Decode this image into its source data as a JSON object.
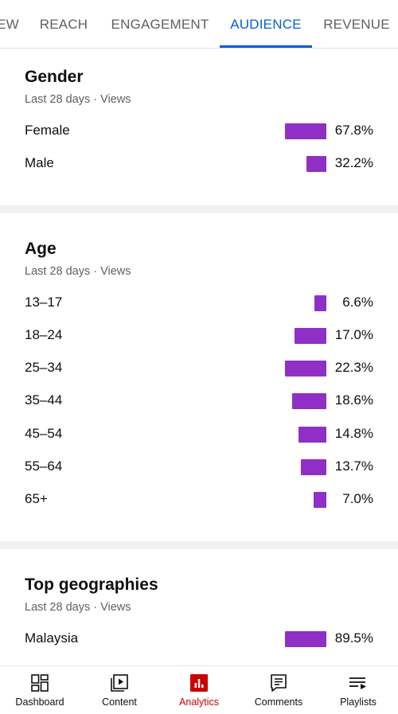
{
  "tabs": [
    {
      "label": "EW"
    },
    {
      "label": "REACH"
    },
    {
      "label": "ENGAGEMENT"
    },
    {
      "label": "AUDIENCE",
      "active": true
    },
    {
      "label": "REVENUE"
    }
  ],
  "gender": {
    "title": "Gender",
    "subtitle": "Last 28 days · Views",
    "rows": [
      {
        "label": "Female",
        "value": "67.8%",
        "percent": 67.8
      },
      {
        "label": "Male",
        "value": "32.2%",
        "percent": 32.2
      }
    ]
  },
  "age": {
    "title": "Age",
    "subtitle": "Last 28 days · Views",
    "rows": [
      {
        "label": "13–17",
        "value": "6.6%",
        "percent": 6.6
      },
      {
        "label": "18–24",
        "value": "17.0%",
        "percent": 17.0
      },
      {
        "label": "25–34",
        "value": "22.3%",
        "percent": 22.3
      },
      {
        "label": "35–44",
        "value": "18.6%",
        "percent": 18.6
      },
      {
        "label": "45–54",
        "value": "14.8%",
        "percent": 14.8
      },
      {
        "label": "55–64",
        "value": "13.7%",
        "percent": 13.7
      },
      {
        "label": "65+",
        "value": "7.0%",
        "percent": 7.0
      }
    ]
  },
  "geographies": {
    "title": "Top geographies",
    "subtitle": "Last 28 days · Views",
    "rows": [
      {
        "label": "Malaysia",
        "value": "89.5%",
        "percent": 89.5
      }
    ]
  },
  "bottom_nav": {
    "items": [
      {
        "label": "Dashboard",
        "icon": "dashboard-icon"
      },
      {
        "label": "Content",
        "icon": "content-icon"
      },
      {
        "label": "Analytics",
        "icon": "analytics-icon",
        "active": true
      },
      {
        "label": "Comments",
        "icon": "comments-icon"
      },
      {
        "label": "Playlists",
        "icon": "playlists-icon"
      }
    ]
  },
  "colors": {
    "accent_blue": "#065fd4",
    "bar_purple": "#8f2fc6",
    "active_red": "#cc0000",
    "divider_gray": "#f1f1f1"
  }
}
